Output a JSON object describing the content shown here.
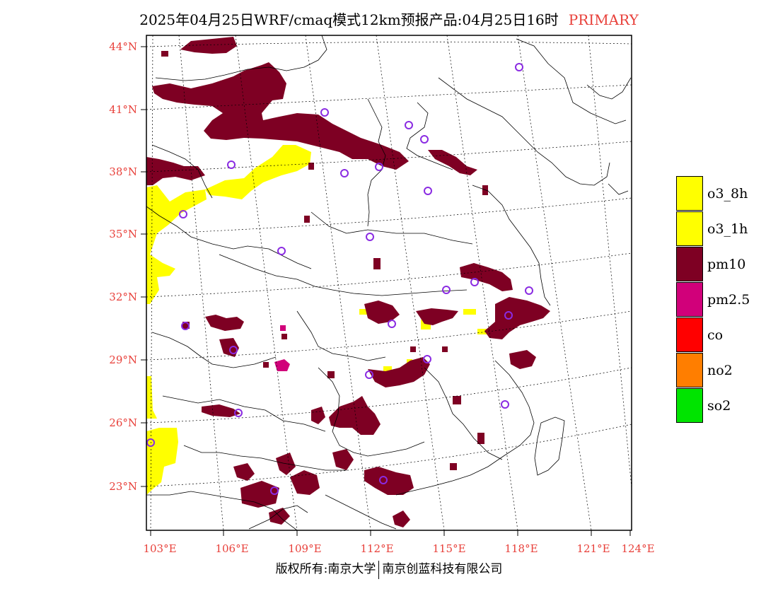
{
  "title": {
    "main": "2025年04月25日WRF/cmaq模式12km预报产品:04月25日16时",
    "tag": "PRIMARY"
  },
  "lat_labels": [
    "44°N",
    "41°N",
    "38°N",
    "35°N",
    "32°N",
    "29°N",
    "26°N",
    "23°N"
  ],
  "lon_labels": [
    "103°E",
    "106°E",
    "109°E",
    "112°E",
    "115°E",
    "118°E",
    "121°E",
    "124°E"
  ],
  "legend": [
    {
      "label": "o3_8h",
      "color": "#ffff00"
    },
    {
      "label": "o3_1h",
      "color": "#ffff00"
    },
    {
      "label": "pm10",
      "color": "#7e0023"
    },
    {
      "label": "pm2.5",
      "color": "#d1007a"
    },
    {
      "label": "co",
      "color": "#ff0000"
    },
    {
      "label": "no2",
      "color": "#ff7e00"
    },
    {
      "label": "so2",
      "color": "#00e400"
    }
  ],
  "station_marker_color": "#8a2be2",
  "footer": {
    "left": "版权所有:南京大学",
    "right": "南京创蓝科技有限公司"
  }
}
